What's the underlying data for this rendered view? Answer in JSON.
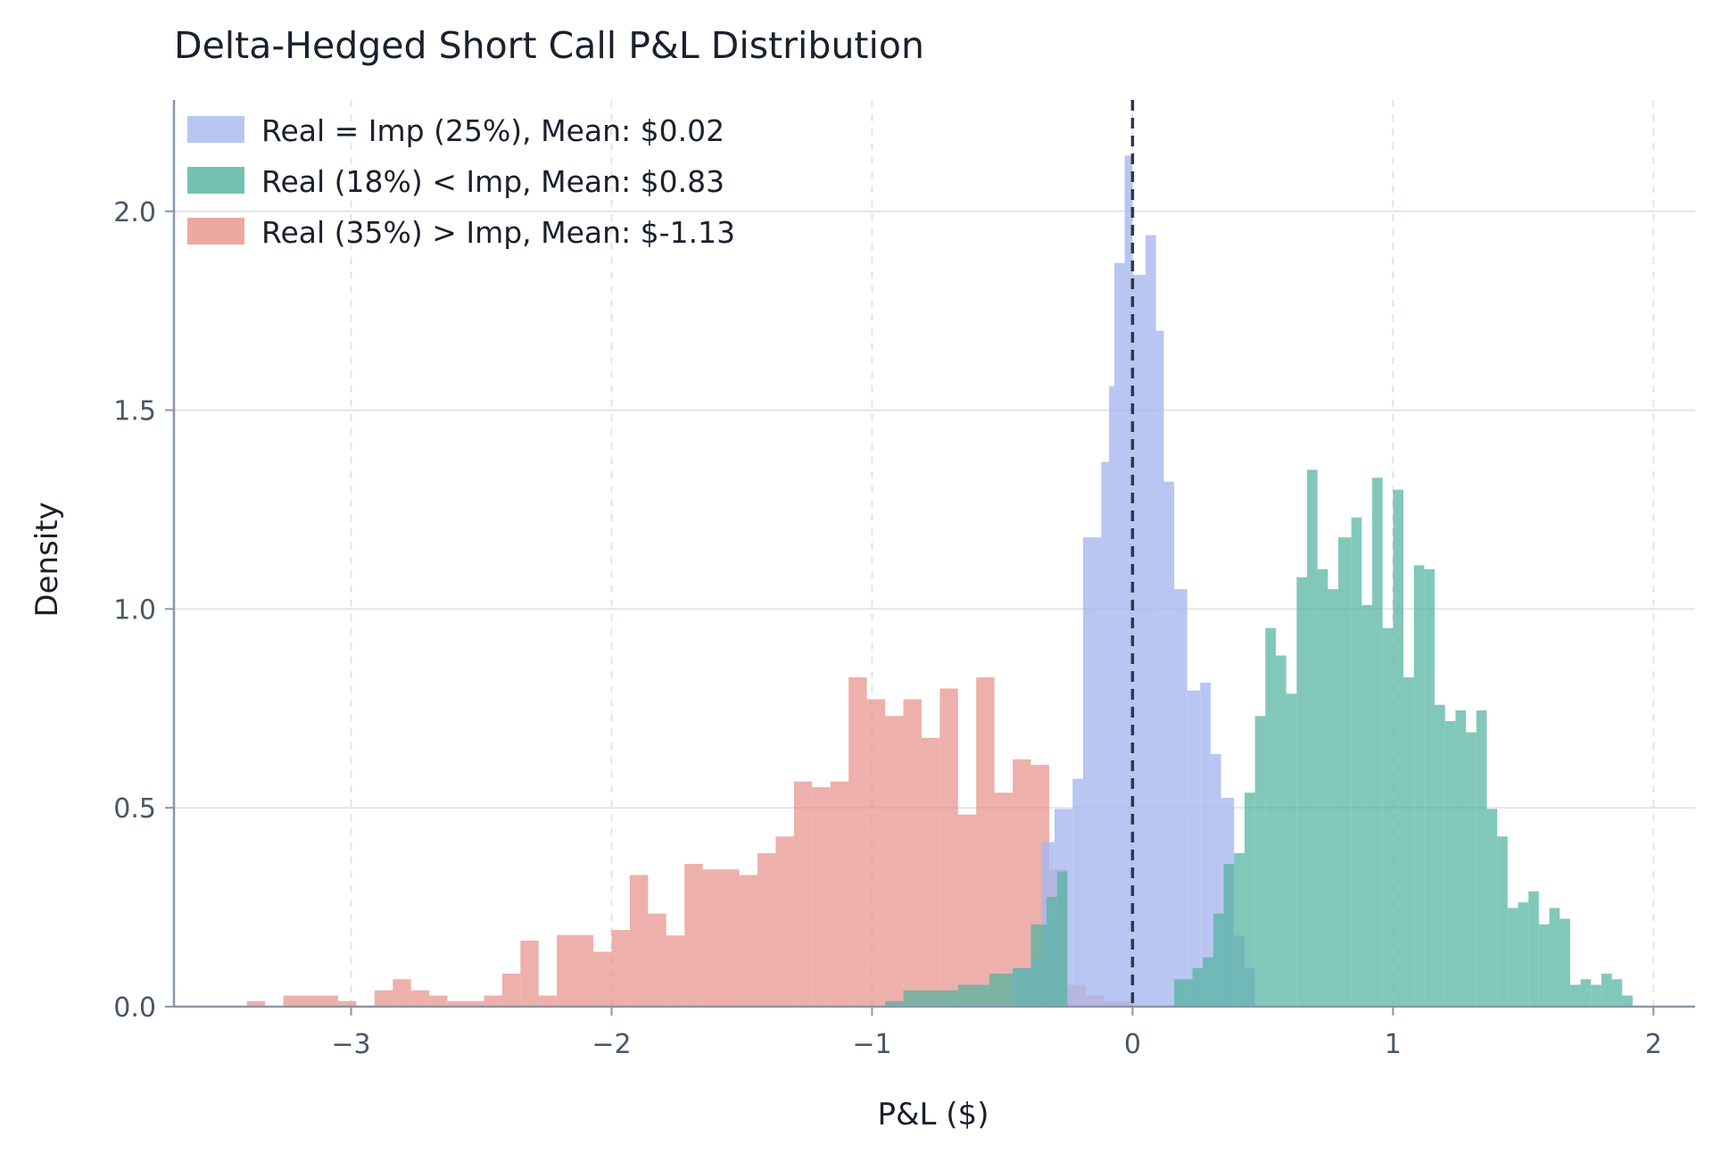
{
  "chart_data": {
    "type": "histogram",
    "title": "Delta-Hedged Short Call P&L Distribution",
    "xlabel": "P&L ($)",
    "ylabel": "Density",
    "xlim": [
      -3.68,
      2.16
    ],
    "ylim": [
      0,
      2.28
    ],
    "xticks": [
      -3,
      -2,
      -1,
      0,
      1,
      2
    ],
    "xtick_labels": [
      "−3",
      "−2",
      "−1",
      "0",
      "1",
      "2"
    ],
    "yticks": [
      0,
      0.5,
      1.0,
      1.5,
      2.0
    ],
    "ytick_labels": [
      "0.0",
      "0.5",
      "1.0",
      "1.5",
      "2.0"
    ],
    "grid": true,
    "legend_position": "top-left",
    "reference_line": {
      "x": 0,
      "style": "dashed",
      "color": "#2d3748"
    },
    "series": [
      {
        "name": "Real (35%) > Imp, Mean: $-1.13",
        "color": "#e8928b",
        "opacity": 0.72,
        "bins": [
          [
            -3.4,
            -3.33,
            0.014
          ],
          [
            -3.26,
            -3.05,
            0.028
          ],
          [
            -3.05,
            -2.98,
            0.014
          ],
          [
            -2.91,
            -2.84,
            0.041
          ],
          [
            -2.84,
            -2.77,
            0.069
          ],
          [
            -2.77,
            -2.7,
            0.041
          ],
          [
            -2.7,
            -2.63,
            0.028
          ],
          [
            -2.63,
            -2.49,
            0.014
          ],
          [
            -2.49,
            -2.42,
            0.028
          ],
          [
            -2.42,
            -2.35,
            0.083
          ],
          [
            -2.35,
            -2.28,
            0.166
          ],
          [
            -2.28,
            -2.21,
            0.028
          ],
          [
            -2.21,
            -2.07,
            0.18
          ],
          [
            -2.07,
            -2.0,
            0.138
          ],
          [
            -2.0,
            -1.93,
            0.193
          ],
          [
            -1.93,
            -1.86,
            0.331
          ],
          [
            -1.86,
            -1.79,
            0.234
          ],
          [
            -1.79,
            -1.72,
            0.179
          ],
          [
            -1.72,
            -1.65,
            0.359
          ],
          [
            -1.65,
            -1.51,
            0.345
          ],
          [
            -1.51,
            -1.44,
            0.331
          ],
          [
            -1.44,
            -1.37,
            0.386
          ],
          [
            -1.37,
            -1.3,
            0.428
          ],
          [
            -1.3,
            -1.23,
            0.566
          ],
          [
            -1.23,
            -1.16,
            0.552
          ],
          [
            -1.16,
            -1.09,
            0.566
          ],
          [
            -1.09,
            -1.02,
            0.828
          ],
          [
            -1.02,
            -0.95,
            0.773
          ],
          [
            -0.95,
            -0.88,
            0.731
          ],
          [
            -0.88,
            -0.81,
            0.773
          ],
          [
            -0.81,
            -0.74,
            0.676
          ],
          [
            -0.74,
            -0.67,
            0.8
          ],
          [
            -0.67,
            -0.6,
            0.483
          ],
          [
            -0.6,
            -0.53,
            0.828
          ],
          [
            -0.53,
            -0.46,
            0.538
          ],
          [
            -0.46,
            -0.39,
            0.622
          ],
          [
            -0.39,
            -0.32,
            0.608
          ],
          [
            -0.32,
            -0.25,
            0.345
          ],
          [
            -0.25,
            -0.18,
            0.055
          ],
          [
            -0.18,
            -0.11,
            0.028
          ],
          [
            -0.11,
            0.0,
            0.014
          ]
        ]
      },
      {
        "name": "Real = Imp (25%), Mean: $0.02",
        "color": "#a8b8ef",
        "opacity": 0.8,
        "bins": [
          [
            -0.46,
            -0.39,
            0.097
          ],
          [
            -0.39,
            -0.35,
            0.124
          ],
          [
            -0.35,
            -0.3,
            0.414
          ],
          [
            -0.3,
            -0.23,
            0.497
          ],
          [
            -0.23,
            -0.19,
            0.573
          ],
          [
            -0.19,
            -0.12,
            1.18
          ],
          [
            -0.12,
            -0.09,
            1.37
          ],
          [
            -0.09,
            -0.07,
            1.56
          ],
          [
            -0.07,
            -0.03,
            1.87
          ],
          [
            -0.03,
            0.0,
            2.14
          ],
          [
            0.0,
            0.05,
            1.84
          ],
          [
            0.05,
            0.09,
            1.94
          ],
          [
            0.09,
            0.12,
            1.7
          ],
          [
            0.12,
            0.16,
            1.32
          ],
          [
            0.16,
            0.21,
            1.05
          ],
          [
            0.21,
            0.26,
            0.795
          ],
          [
            0.26,
            0.3,
            0.815
          ],
          [
            0.3,
            0.34,
            0.635
          ],
          [
            0.34,
            0.39,
            0.525
          ],
          [
            0.39,
            0.43,
            0.179
          ],
          [
            0.43,
            0.47,
            0.097
          ]
        ]
      },
      {
        "name": "Real (18%) < Imp, Mean: $0.83",
        "color": "#52b39f",
        "opacity": 0.72,
        "bins": [
          [
            -0.95,
            -0.88,
            0.014
          ],
          [
            -0.88,
            -0.67,
            0.041
          ],
          [
            -0.67,
            -0.55,
            0.055
          ],
          [
            -0.55,
            -0.46,
            0.083
          ],
          [
            -0.46,
            -0.39,
            0.097
          ],
          [
            -0.39,
            -0.33,
            0.207
          ],
          [
            -0.33,
            -0.29,
            0.276
          ],
          [
            -0.29,
            -0.25,
            0.34
          ],
          [
            0.16,
            0.23,
            0.069
          ],
          [
            0.23,
            0.27,
            0.097
          ],
          [
            0.27,
            0.31,
            0.124
          ],
          [
            0.31,
            0.35,
            0.234
          ],
          [
            0.35,
            0.39,
            0.359
          ],
          [
            0.39,
            0.43,
            0.386
          ],
          [
            0.43,
            0.47,
            0.538
          ],
          [
            0.47,
            0.51,
            0.731
          ],
          [
            0.51,
            0.55,
            0.952
          ],
          [
            0.55,
            0.59,
            0.883
          ],
          [
            0.59,
            0.63,
            0.787
          ],
          [
            0.63,
            0.67,
            1.08
          ],
          [
            0.67,
            0.71,
            1.35
          ],
          [
            0.71,
            0.75,
            1.1
          ],
          [
            0.75,
            0.79,
            1.05
          ],
          [
            0.79,
            0.84,
            1.18
          ],
          [
            0.84,
            0.88,
            1.23
          ],
          [
            0.88,
            0.92,
            1.01
          ],
          [
            0.92,
            0.96,
            1.33
          ],
          [
            0.96,
            1.0,
            0.952
          ],
          [
            1.0,
            1.04,
            1.3
          ],
          [
            1.04,
            1.08,
            0.828
          ],
          [
            1.08,
            1.12,
            1.11
          ],
          [
            1.12,
            1.16,
            1.1
          ],
          [
            1.16,
            1.2,
            0.759
          ],
          [
            1.2,
            1.24,
            0.718
          ],
          [
            1.24,
            1.28,
            0.745
          ],
          [
            1.28,
            1.32,
            0.69
          ],
          [
            1.32,
            1.36,
            0.745
          ],
          [
            1.36,
            1.4,
            0.497
          ],
          [
            1.4,
            1.44,
            0.428
          ],
          [
            1.44,
            1.48,
            0.248
          ],
          [
            1.48,
            1.52,
            0.262
          ],
          [
            1.52,
            1.56,
            0.29
          ],
          [
            1.56,
            1.6,
            0.207
          ],
          [
            1.6,
            1.64,
            0.248
          ],
          [
            1.64,
            1.68,
            0.221
          ],
          [
            1.68,
            1.72,
            0.055
          ],
          [
            1.72,
            1.76,
            0.069
          ],
          [
            1.76,
            1.8,
            0.055
          ],
          [
            1.8,
            1.84,
            0.083
          ],
          [
            1.84,
            1.88,
            0.069
          ],
          [
            1.88,
            1.92,
            0.028
          ]
        ]
      }
    ],
    "legend": [
      {
        "label": "Real = Imp (25%), Mean: $0.02",
        "color": "#a8b8ef"
      },
      {
        "label": "Real (18%) < Imp, Mean: $0.83",
        "color": "#52b39f"
      },
      {
        "label": "Real (35%) > Imp, Mean: $-1.13",
        "color": "#e8928b"
      }
    ]
  }
}
